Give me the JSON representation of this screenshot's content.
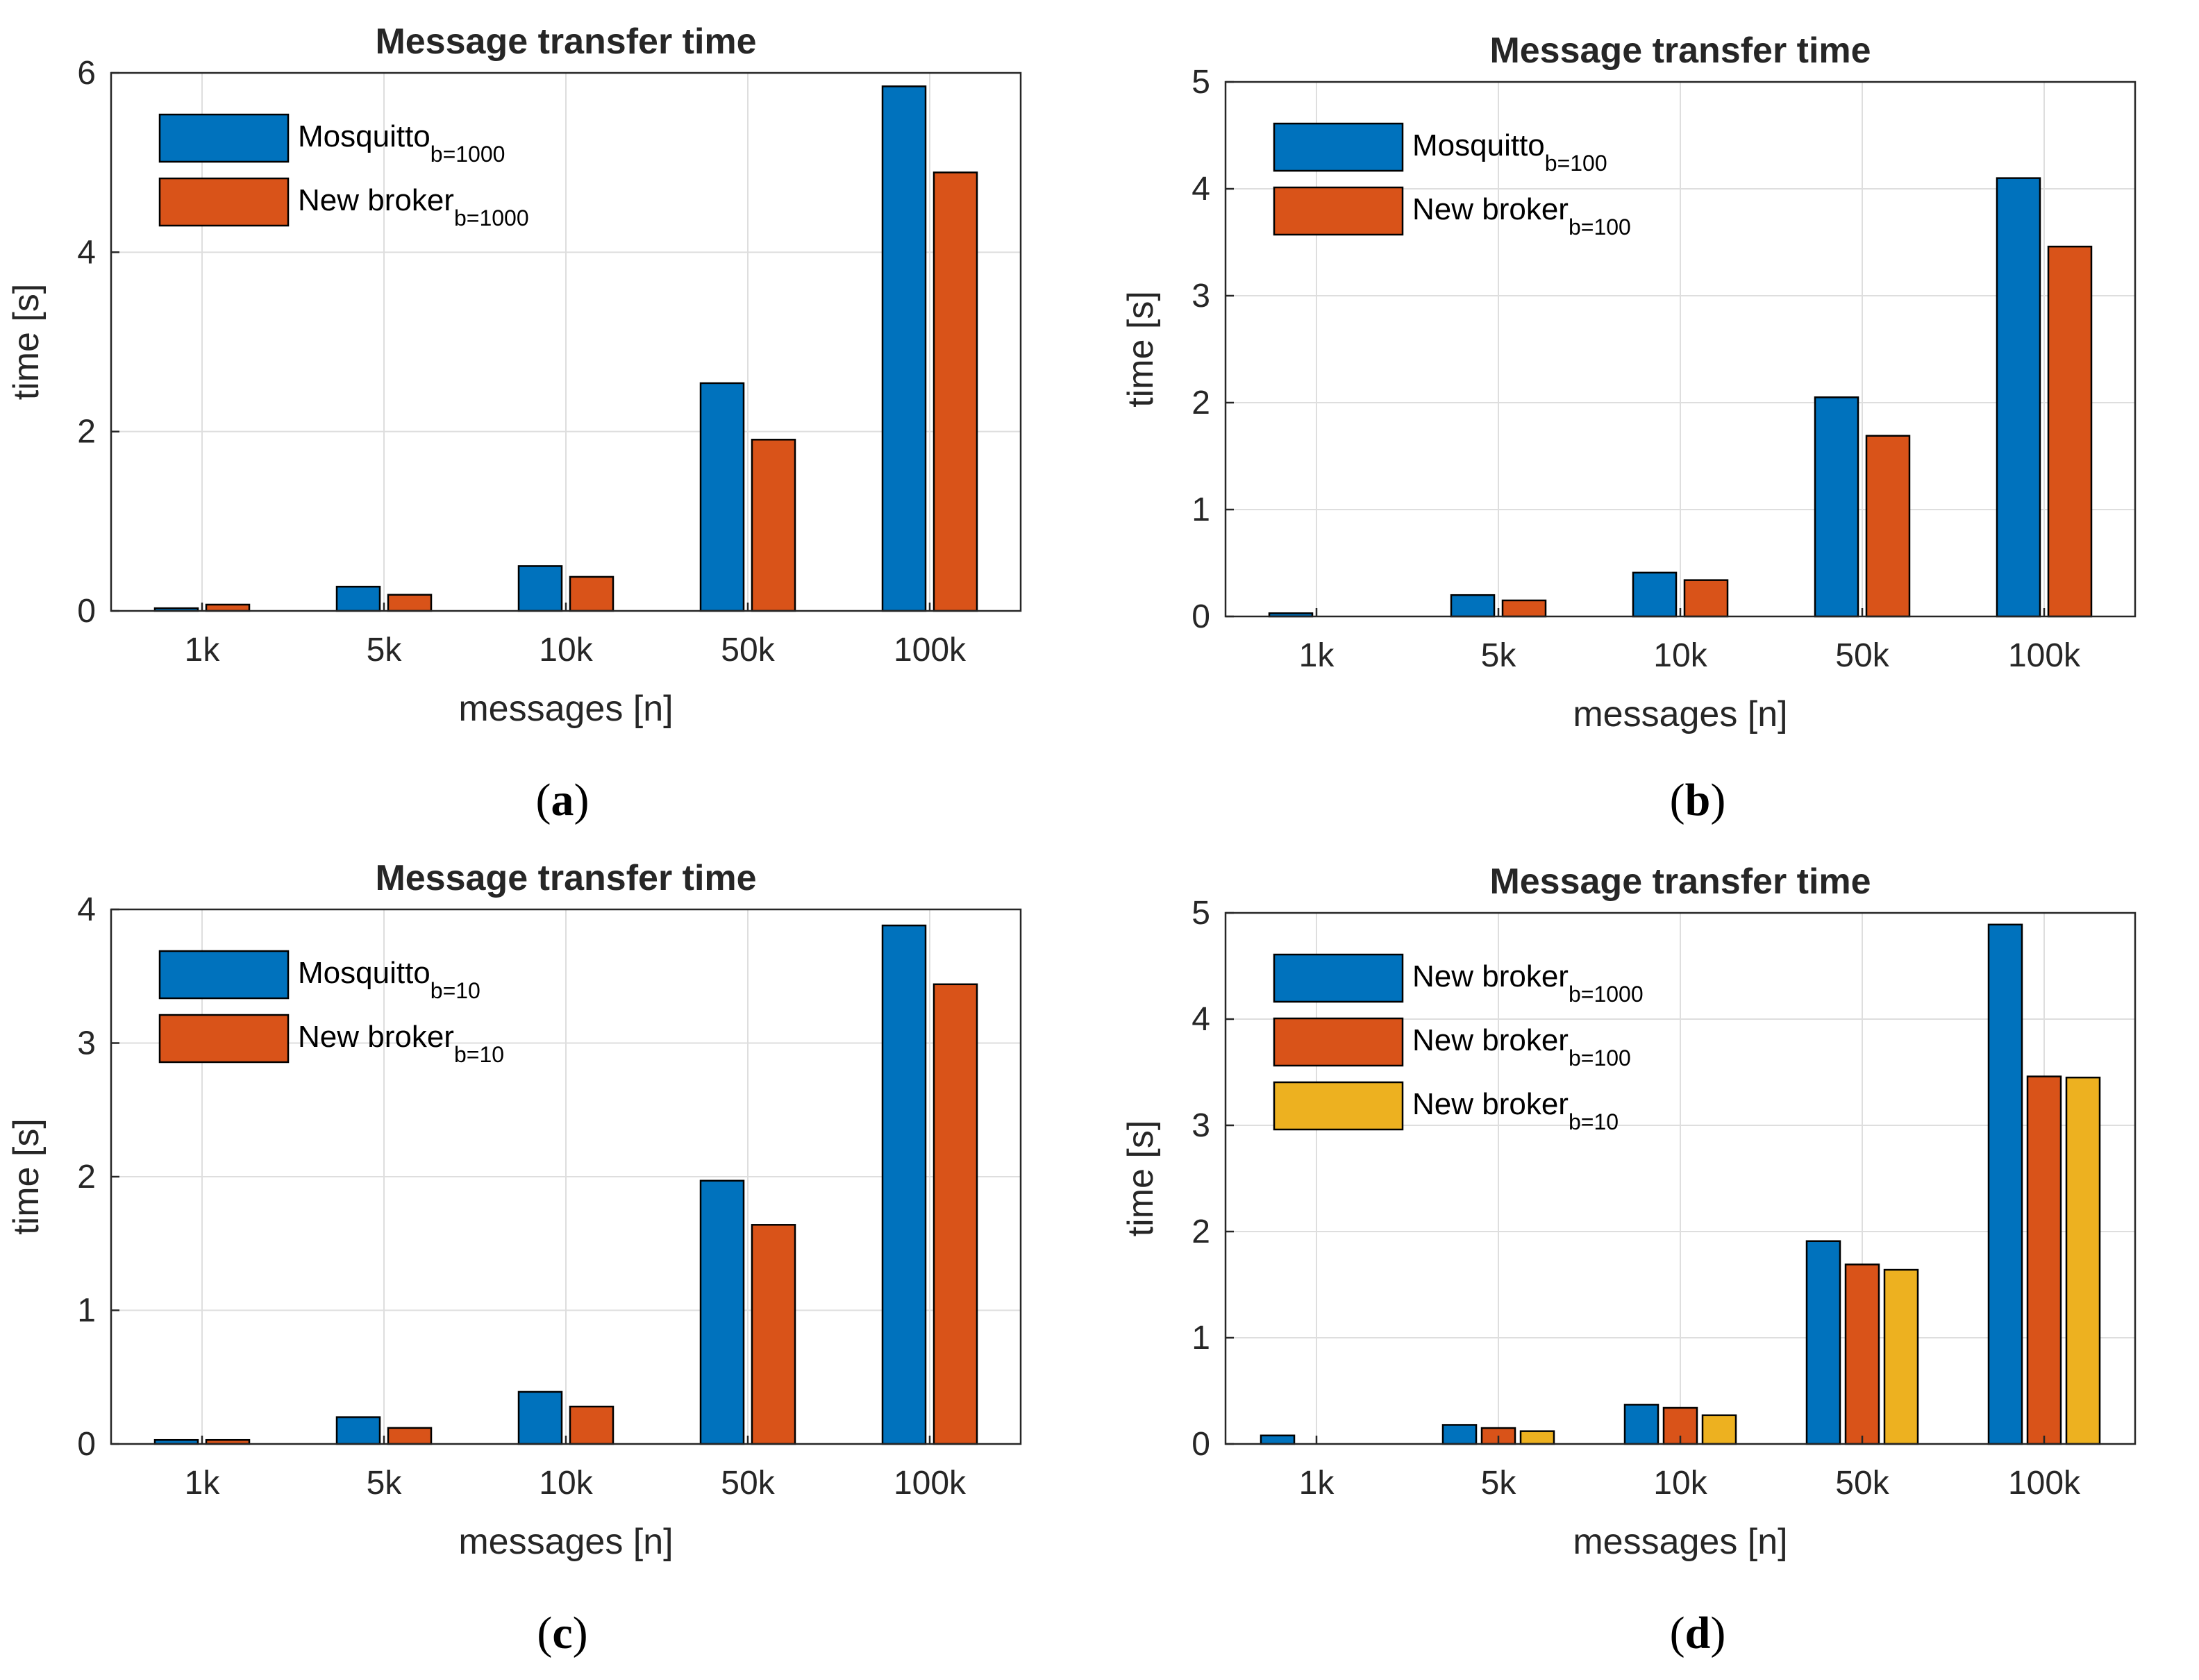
{
  "chart_data": [
    {
      "type": "bar",
      "title": "Message transfer time",
      "xlabel": "messages [n]",
      "ylabel": "time [s]",
      "categories": [
        "1k",
        "5k",
        "10k",
        "50k",
        "100k"
      ],
      "ylim": [
        0,
        6
      ],
      "yticks": [
        "0",
        "2",
        "4",
        "6"
      ],
      "grid": true,
      "legend_position": "top-left",
      "caption": "a",
      "series": [
        {
          "name": "Mosquitto",
          "subscript": "b=1000",
          "color": "#0072BD",
          "values": [
            0.03,
            0.27,
            0.5,
            2.54,
            5.85
          ]
        },
        {
          "name": "New broker",
          "subscript": "b=1000",
          "color": "#D95319",
          "values": [
            0.07,
            0.18,
            0.38,
            1.91,
            4.89
          ]
        }
      ]
    },
    {
      "type": "bar",
      "title": "Message transfer time",
      "xlabel": "messages [n]",
      "ylabel": "time [s]",
      "categories": [
        "1k",
        "5k",
        "10k",
        "50k",
        "100k"
      ],
      "ylim": [
        0,
        5
      ],
      "yticks": [
        "0",
        "1",
        "2",
        "3",
        "4",
        "5"
      ],
      "grid": true,
      "legend_position": "top-left",
      "caption": "b",
      "series": [
        {
          "name": "Mosquitto",
          "subscript": "b=100",
          "color": "#0072BD",
          "values": [
            0.03,
            0.2,
            0.41,
            2.05,
            4.1
          ]
        },
        {
          "name": "New broker",
          "subscript": "b=100",
          "color": "#D95319",
          "values": [
            0.0,
            0.15,
            0.34,
            1.69,
            3.46
          ]
        }
      ]
    },
    {
      "type": "bar",
      "title": "Message transfer time",
      "xlabel": "messages [n]",
      "ylabel": "time [s]",
      "categories": [
        "1k",
        "5k",
        "10k",
        "50k",
        "100k"
      ],
      "ylim": [
        0,
        4
      ],
      "yticks": [
        "0",
        "1",
        "2",
        "3",
        "4"
      ],
      "grid": true,
      "legend_position": "top-left",
      "caption": "c",
      "series": [
        {
          "name": "Mosquitto",
          "subscript": "b=10",
          "color": "#0072BD",
          "values": [
            0.03,
            0.2,
            0.39,
            1.97,
            3.88
          ]
        },
        {
          "name": "New broker",
          "subscript": "b=10",
          "color": "#D95319",
          "values": [
            0.03,
            0.12,
            0.28,
            1.64,
            3.44
          ]
        }
      ]
    },
    {
      "type": "bar",
      "title": "Message transfer time",
      "xlabel": "messages [n]",
      "ylabel": "time [s]",
      "categories": [
        "1k",
        "5k",
        "10k",
        "50k",
        "100k"
      ],
      "ylim": [
        0,
        5
      ],
      "yticks": [
        "0",
        "1",
        "2",
        "3",
        "4",
        "5"
      ],
      "grid": true,
      "legend_position": "top-left",
      "caption": "d",
      "series": [
        {
          "name": "New broker",
          "subscript": "b=1000",
          "color": "#0072BD",
          "values": [
            0.08,
            0.18,
            0.37,
            1.91,
            4.89
          ]
        },
        {
          "name": "New broker",
          "subscript": "b=100",
          "color": "#D95319",
          "values": [
            0.0,
            0.15,
            0.34,
            1.69,
            3.46
          ]
        },
        {
          "name": "New broker",
          "subscript": "b=10",
          "color": "#EDB120",
          "values": [
            0.0,
            0.12,
            0.27,
            1.64,
            3.45
          ]
        }
      ]
    }
  ]
}
